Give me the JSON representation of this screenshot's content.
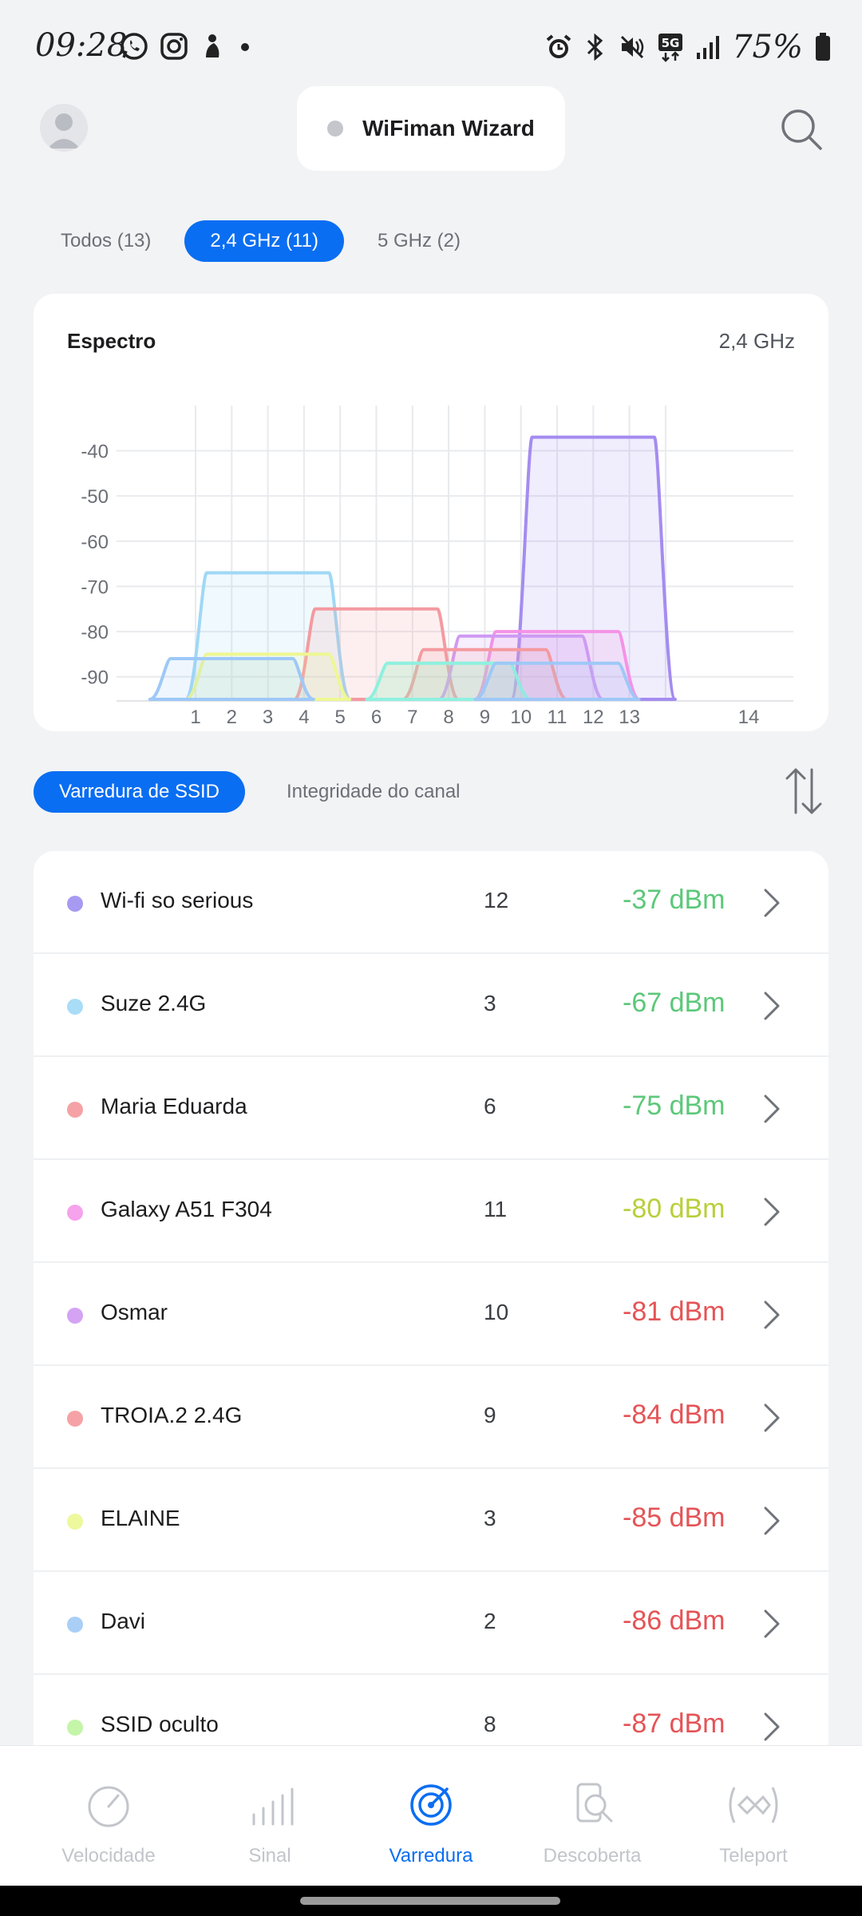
{
  "status_bar": {
    "time": "09:28",
    "battery": "75%"
  },
  "header": {
    "title": "WiFiman Wizard"
  },
  "bands": [
    {
      "label": "Todos (13)",
      "active": false
    },
    {
      "label": "2,4 GHz (11)",
      "active": true
    },
    {
      "label": "5 GHz (2)",
      "active": false
    }
  ],
  "spectrum": {
    "title": "Espectro",
    "band_label": "2,4 GHz"
  },
  "chart_data": {
    "type": "area",
    "title": "Espectro",
    "subtitle": "2,4 GHz",
    "x_ticks": [
      "1",
      "2",
      "3",
      "4",
      "5",
      "6",
      "7",
      "8",
      "9",
      "10",
      "11",
      "12",
      "13",
      "14"
    ],
    "y_ticks": [
      "-40",
      "-50",
      "-60",
      "-70",
      "-80",
      "-90"
    ],
    "ylim": [
      -95,
      -30
    ],
    "grid": true,
    "series": [
      {
        "channel": 12,
        "dbm": -37,
        "color": "#a48cf0"
      },
      {
        "channel": 3,
        "dbm": -67,
        "color": "#9fd8f5"
      },
      {
        "channel": 6,
        "dbm": -75,
        "color": "#f49aa0"
      },
      {
        "channel": 11,
        "dbm": -80,
        "color": "#f592e6"
      },
      {
        "channel": 10,
        "dbm": -81,
        "color": "#cf9af3"
      },
      {
        "channel": 9,
        "dbm": -84,
        "color": "#f49aa0"
      },
      {
        "channel": 3,
        "dbm": -85,
        "color": "#eef792"
      },
      {
        "channel": 2,
        "dbm": -86,
        "color": "#9ec8f7"
      },
      {
        "channel": 8,
        "dbm": -87,
        "color": "#b6f5a0"
      },
      {
        "channel": 8,
        "dbm": -87,
        "color": "#8ff0e0"
      },
      {
        "channel": 11,
        "dbm": -87,
        "color": "#9ec8f7"
      }
    ]
  },
  "subtabs": [
    {
      "label": "Varredura de SSID",
      "active": true
    },
    {
      "label": "Integridade do canal",
      "active": false
    }
  ],
  "networks": [
    {
      "name": "Wi-fi so serious",
      "channel": "12",
      "signal": "-37 dBm",
      "dot": "#a69af2",
      "sig_color": "#5cc87a"
    },
    {
      "name": "Suze 2.4G",
      "channel": "3",
      "signal": "-67 dBm",
      "dot": "#a9dcf7",
      "sig_color": "#5cc87a"
    },
    {
      "name": "Maria Eduarda",
      "channel": "6",
      "signal": "-75 dBm",
      "dot": "#f5a2a6",
      "sig_color": "#5cc87a"
    },
    {
      "name": "Galaxy A51 F304",
      "channel": "11",
      "signal": "-80 dBm",
      "dot": "#f6a2ec",
      "sig_color": "#b9cf3a"
    },
    {
      "name": "Osmar",
      "channel": "10",
      "signal": "-81 dBm",
      "dot": "#d4a3f4",
      "sig_color": "#e45457"
    },
    {
      "name": "TROIA.2 2.4G",
      "channel": "9",
      "signal": "-84 dBm",
      "dot": "#f5a2a6",
      "sig_color": "#e45457"
    },
    {
      "name": "ELAINE",
      "channel": "3",
      "signal": "-85 dBm",
      "dot": "#eef89c",
      "sig_color": "#e45457"
    },
    {
      "name": "Davi",
      "channel": "2",
      "signal": "-86 dBm",
      "dot": "#a9cff7",
      "sig_color": "#e45457"
    },
    {
      "name": "SSID oculto",
      "channel": "8",
      "signal": "-87 dBm",
      "dot": "#c4f5a8",
      "sig_color": "#e45457"
    }
  ],
  "bottom_nav": [
    {
      "label": "Velocidade",
      "icon": "speedometer-icon",
      "active": false
    },
    {
      "label": "Sinal",
      "icon": "signal-bars-icon",
      "active": false
    },
    {
      "label": "Varredura",
      "icon": "radar-icon",
      "active": true
    },
    {
      "label": "Descoberta",
      "icon": "discovery-icon",
      "active": false
    },
    {
      "label": "Teleport",
      "icon": "teleport-icon",
      "active": false
    }
  ]
}
